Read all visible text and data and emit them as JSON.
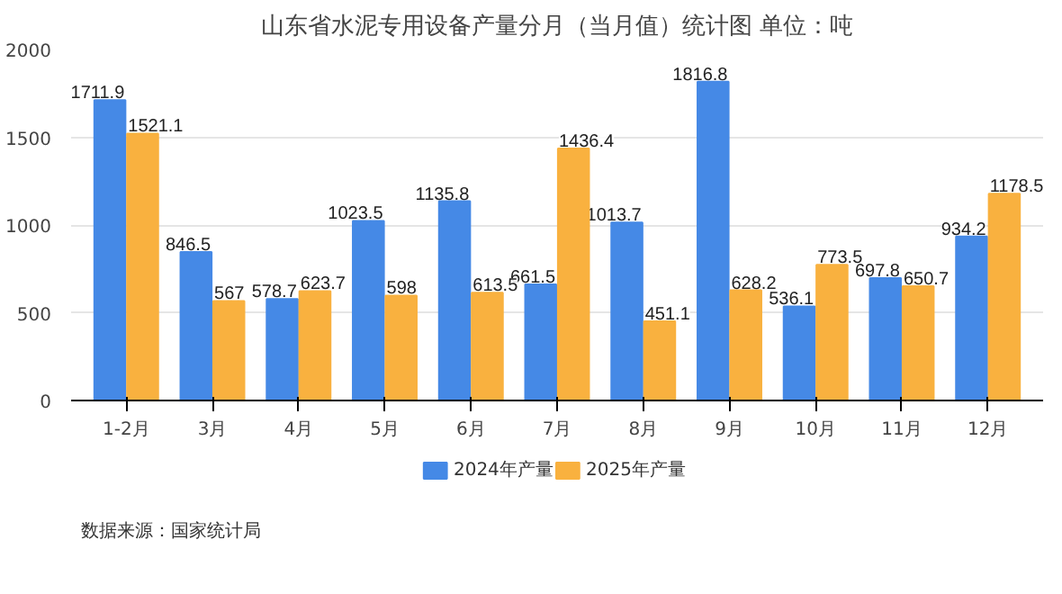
{
  "chart_data": {
    "type": "bar",
    "title": "山东省水泥专用设备产量分月（当月值）统计图 单位：吨",
    "categories": [
      "1-2月",
      "3月",
      "4月",
      "5月",
      "6月",
      "7月",
      "8月",
      "9月",
      "10月",
      "11月",
      "12月"
    ],
    "series": [
      {
        "name": "2024年产量",
        "color": "#4589e6",
        "values": [
          1711.9,
          846.5,
          578.7,
          1023.5,
          1135.8,
          661.5,
          1013.7,
          1816.8,
          536.1,
          697.8,
          934.2
        ]
      },
      {
        "name": "2025年产量",
        "color": "#f9b13f",
        "values": [
          1521.1,
          567,
          623.7,
          598,
          613.5,
          1436.4,
          451.1,
          628.2,
          773.5,
          650.7,
          1178.5
        ]
      }
    ],
    "ylim": [
      0,
      2000
    ],
    "yticks": [
      0,
      500,
      1000,
      1500,
      2000
    ],
    "grid": "y",
    "legend": "bottom",
    "data_labels": true,
    "annotations": [
      "数据来源：国家统计局"
    ]
  }
}
